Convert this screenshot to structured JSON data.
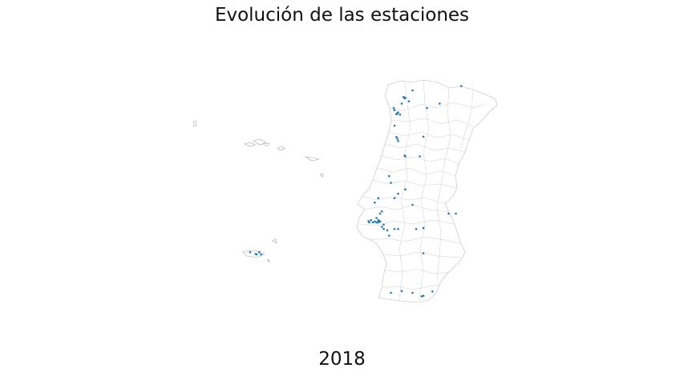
{
  "title": "Evolución de las estaciones",
  "year": "2018",
  "colors": {
    "station": "#1f77b4",
    "border": "#bdbdbd",
    "background": "#ffffff"
  },
  "stations": {
    "mainland": [
      [
        -8.65,
        41.16
      ],
      [
        -8.62,
        41.18
      ],
      [
        -8.6,
        41.2
      ],
      [
        -8.7,
        41.25
      ],
      [
        -8.72,
        41.3
      ],
      [
        -8.55,
        41.15
      ],
      [
        -8.5,
        41.4
      ],
      [
        -8.45,
        41.55
      ],
      [
        -8.3,
        41.45
      ],
      [
        -8.42,
        41.52
      ],
      [
        -8.4,
        41.53
      ],
      [
        -8.2,
        41.7
      ],
      [
        -7.8,
        41.3
      ],
      [
        -7.45,
        41.4
      ],
      [
        -6.85,
        41.8
      ],
      [
        -8.7,
        40.9
      ],
      [
        -8.65,
        40.64
      ],
      [
        -8.6,
        40.55
      ],
      [
        -8.4,
        40.2
      ],
      [
        -8.42,
        40.22
      ],
      [
        -8.0,
        40.2
      ],
      [
        -7.9,
        40.65
      ],
      [
        -8.85,
        39.75
      ],
      [
        -8.8,
        39.6
      ],
      [
        -8.4,
        39.45
      ],
      [
        -8.6,
        39.35
      ],
      [
        -8.7,
        39.25
      ],
      [
        -8.2,
        39.1
      ],
      [
        -9.1,
        38.9
      ],
      [
        -9.05,
        38.95
      ],
      [
        -9.2,
        38.8
      ],
      [
        -9.15,
        38.75
      ],
      [
        -9.12,
        38.73
      ],
      [
        -9.1,
        38.72
      ],
      [
        -9.14,
        38.71
      ],
      [
        -9.16,
        38.7
      ],
      [
        -9.2,
        38.7
      ],
      [
        -9.25,
        38.72
      ],
      [
        -9.3,
        38.7
      ],
      [
        -9.35,
        38.75
      ],
      [
        -9.4,
        38.7
      ],
      [
        -9.42,
        38.73
      ],
      [
        -9.0,
        38.65
      ],
      [
        -9.05,
        38.6
      ],
      [
        -9.0,
        38.55
      ],
      [
        -8.9,
        38.52
      ],
      [
        -8.7,
        38.55
      ],
      [
        -8.85,
        38.4
      ],
      [
        -8.6,
        38.55
      ],
      [
        -8.1,
        38.55
      ],
      [
        -7.9,
        38.57
      ],
      [
        -7.2,
        38.9
      ],
      [
        -7.0,
        38.9
      ],
      [
        -7.9,
        38.0
      ],
      [
        -8.8,
        37.1
      ],
      [
        -8.5,
        37.14
      ],
      [
        -8.2,
        37.1
      ],
      [
        -7.95,
        37.02
      ],
      [
        -7.9,
        37.03
      ],
      [
        -7.65,
        37.13
      ],
      [
        -9.25,
        39.15
      ],
      [
        -9.15,
        39.25
      ],
      [
        -8.62,
        40.6
      ]
    ],
    "madeira": [
      [
        -16.92,
        32.65
      ],
      [
        -16.95,
        32.66
      ],
      [
        -16.85,
        32.7
      ],
      [
        -16.8,
        32.65
      ],
      [
        -17.1,
        32.7
      ]
    ]
  }
}
